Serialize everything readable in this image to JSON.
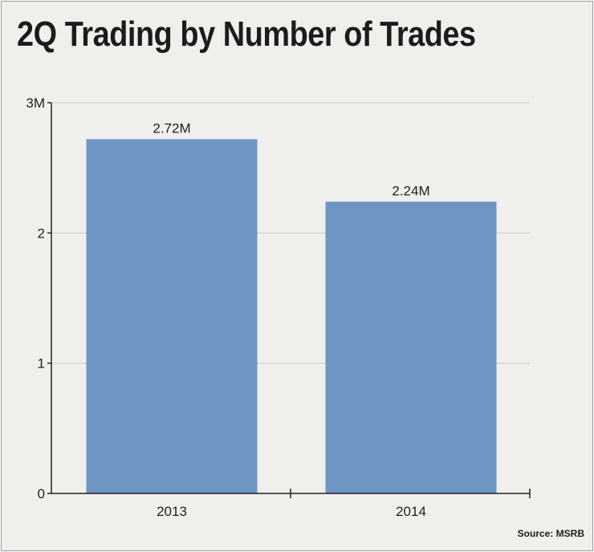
{
  "chart_data": {
    "type": "bar",
    "title": "2Q Trading by Number of Trades",
    "categories": [
      "2013",
      "2014"
    ],
    "values": [
      2.72,
      2.24
    ],
    "data_labels": [
      "2.72M",
      "2.24M"
    ],
    "yticks": [
      {
        "value": 0,
        "label": "0"
      },
      {
        "value": 1,
        "label": "1"
      },
      {
        "value": 2,
        "label": "2"
      },
      {
        "value": 3,
        "label": "3M"
      }
    ],
    "ylim": [
      0,
      3
    ],
    "xlabel": "",
    "ylabel": "",
    "grid": true,
    "bar_color": "#6f95c3",
    "grid_color": "#c9c9c5",
    "source": "Source: MSRB"
  }
}
